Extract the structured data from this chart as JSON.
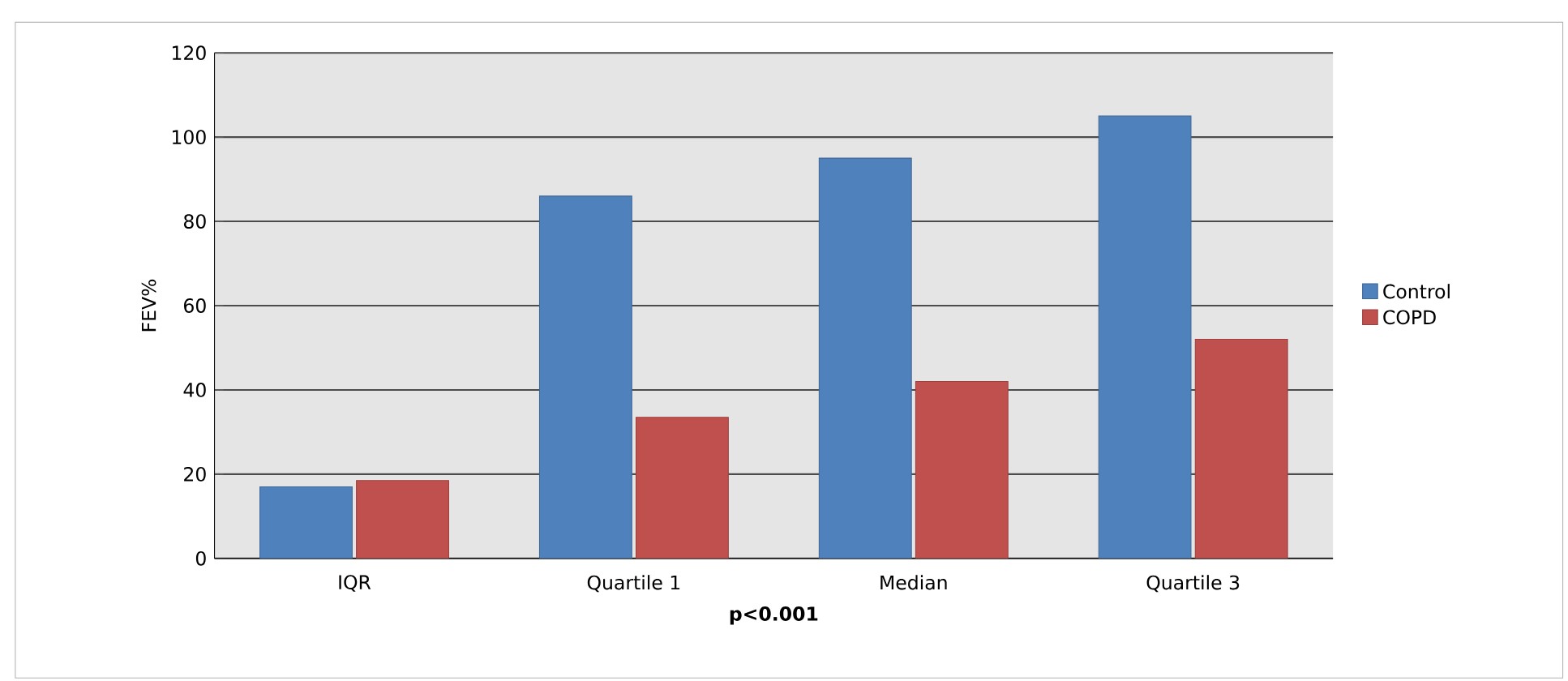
{
  "chart_data": {
    "type": "bar",
    "xlabel": "**p<0.001**",
    "ylabel": "FEV%",
    "categories": [
      "IQR",
      "Quartile 1",
      "Median",
      "Quartile 3"
    ],
    "series": [
      {
        "name": "Control",
        "color": "#4f81bd",
        "values": [
          17,
          86,
          95,
          105
        ]
      },
      {
        "name": "COPD",
        "color": "#c0504d",
        "values": [
          18.5,
          33.5,
          42,
          52
        ]
      }
    ],
    "ylim": [
      0,
      120
    ],
    "yticks": [
      0,
      20,
      40,
      60,
      80,
      100,
      120
    ],
    "grid": "y",
    "legend": "right"
  }
}
